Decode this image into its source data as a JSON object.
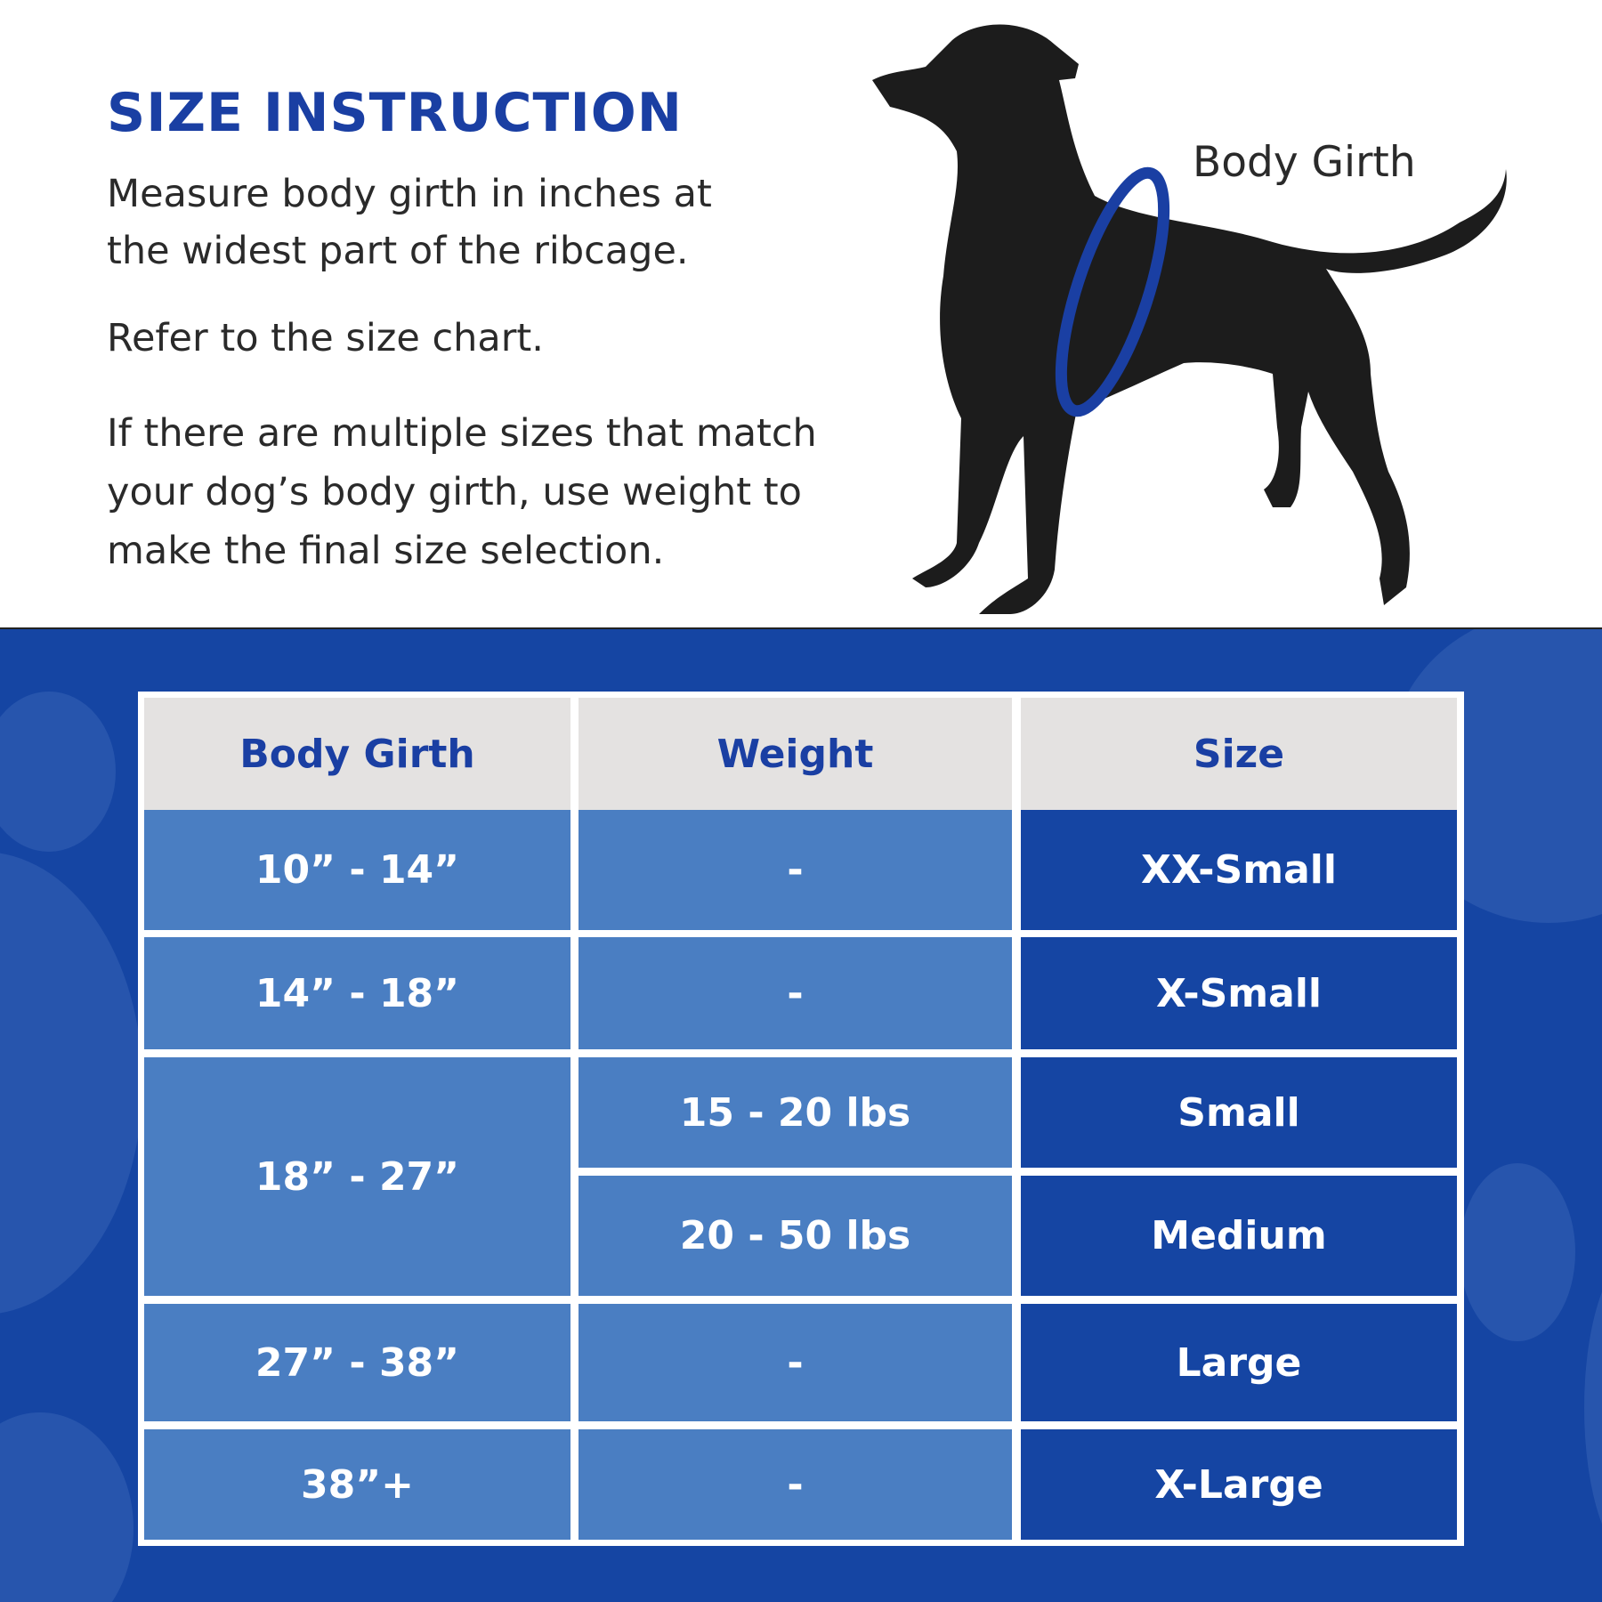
{
  "instructions": {
    "title": "SIZE INSTRUCTION",
    "paragraphs": [
      "Measure body girth in inches at the widest part of the ribcage.",
      "Refer to the size chart.",
      "If there are multiple sizes that match your dog’s body girth, use weight to make the final size selection."
    ]
  },
  "illustration": {
    "label": "Body Girth",
    "ring_color": "#1a3fa3",
    "dog_color": "#1c1c1c"
  },
  "colors": {
    "brand_blue": "#1545a3",
    "light_blue": "#4a7ec2",
    "header_gray": "#e4e2e1"
  },
  "table": {
    "headers": [
      "Body Girth",
      "Weight",
      "Size"
    ],
    "rows": [
      {
        "girth": "10” - 14”",
        "weight": "-",
        "size": "XX-Small"
      },
      {
        "girth": "14” - 18”",
        "weight": "-",
        "size": "X-Small"
      },
      {
        "girth": "18” - 27”",
        "weight": "15 - 20 lbs",
        "size": "Small"
      },
      {
        "girth": "18” - 27”",
        "weight": "20 - 50 lbs",
        "size": "Medium"
      },
      {
        "girth": "27” - 38”",
        "weight": "-",
        "size": "Large"
      },
      {
        "girth": "38”+",
        "weight": "-",
        "size": "X-Large"
      }
    ]
  }
}
